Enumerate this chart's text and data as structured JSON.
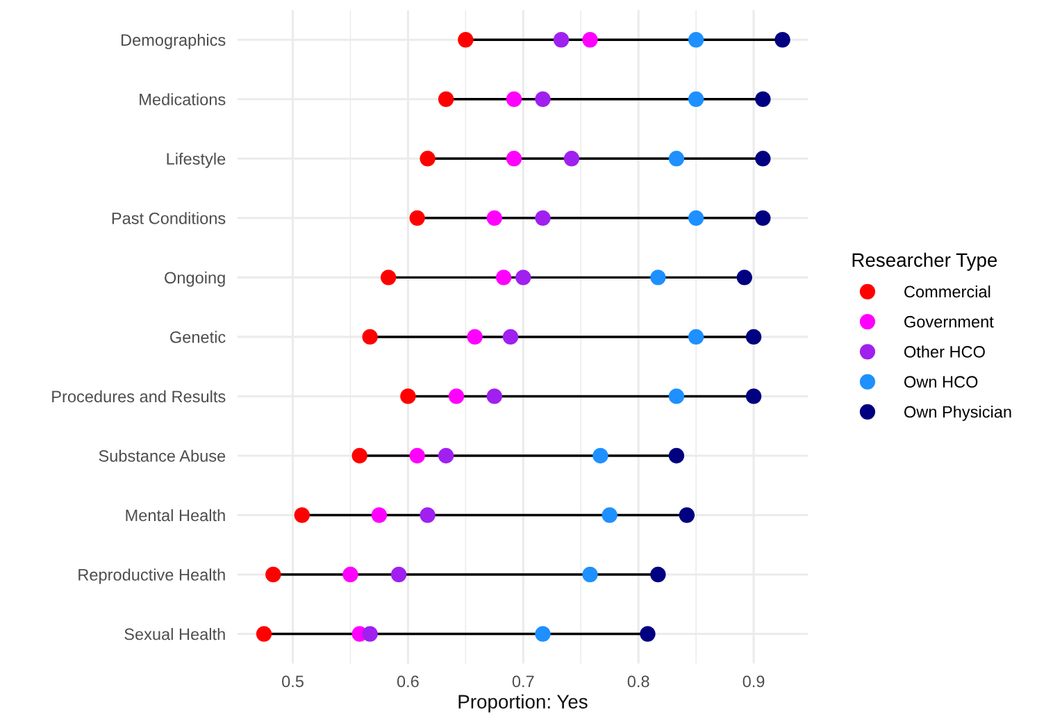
{
  "chart_data": {
    "type": "scatter",
    "orientation": "horizontal",
    "xlabel": "Proportion: Yes",
    "legend_title": "Researcher Type",
    "legend": "right",
    "grid": true,
    "marker": "circle",
    "categories": [
      "Demographics",
      "Medications",
      "Lifestyle",
      "Past Conditions",
      "Ongoing",
      "Genetic",
      "Procedures and Results",
      "Substance Abuse",
      "Mental Health",
      "Reproductive Health",
      "Sexual Health"
    ],
    "xlim": [
      0.452,
      0.947
    ],
    "xticks": [
      0.5,
      0.6,
      0.7,
      0.8,
      0.9
    ],
    "series": [
      {
        "name": "Commercial",
        "color": "#ff0000",
        "values": [
          0.65,
          0.633,
          0.617,
          0.608,
          0.583,
          0.567,
          0.6,
          0.558,
          0.508,
          0.483,
          0.475
        ]
      },
      {
        "name": "Government",
        "color": "#ff00ff",
        "values": [
          0.758,
          0.692,
          0.692,
          0.675,
          0.683,
          0.658,
          0.642,
          0.608,
          0.575,
          0.55,
          0.558
        ]
      },
      {
        "name": "Other HCO",
        "color": "#a020f0",
        "values": [
          0.733,
          0.717,
          0.742,
          0.717,
          0.7,
          0.689,
          0.675,
          0.633,
          0.617,
          0.592,
          0.567
        ]
      },
      {
        "name": "Own HCO",
        "color": "#1e90ff",
        "values": [
          0.85,
          0.85,
          0.833,
          0.85,
          0.817,
          0.85,
          0.833,
          0.767,
          0.775,
          0.758,
          0.717
        ]
      },
      {
        "name": "Own Physician",
        "color": "#000080",
        "values": [
          0.925,
          0.908,
          0.908,
          0.908,
          0.892,
          0.9,
          0.9,
          0.833,
          0.842,
          0.817,
          0.808
        ]
      }
    ]
  }
}
